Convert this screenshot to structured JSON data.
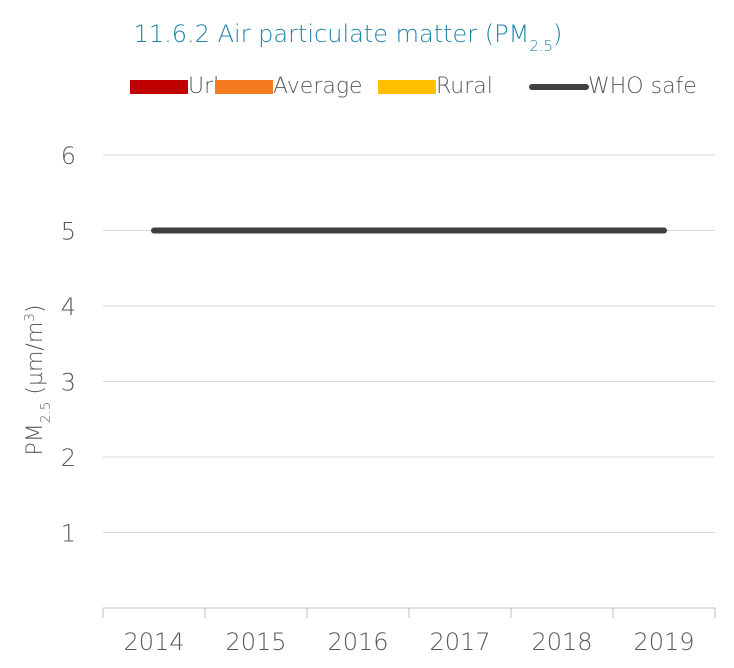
{
  "chart_data": {
    "type": "bar",
    "title": [
      "11.6.2 Air particulate matter (PM",
      "2.5",
      ")"
    ],
    "y_label": [
      "PM",
      "2.5",
      " (µm/m",
      "3",
      ")"
    ],
    "categories": [
      "2014",
      "2015",
      "2016",
      "2017",
      "2018",
      "2019"
    ],
    "series": [
      {
        "name": "Urban",
        "type": "bar",
        "color": "#c00000",
        "values": [
          null,
          null,
          null,
          null,
          null,
          null
        ]
      },
      {
        "name": "Average",
        "type": "bar",
        "color": "#f47b20",
        "values": [
          null,
          null,
          null,
          null,
          null,
          null
        ]
      },
      {
        "name": "Rural",
        "type": "bar",
        "color": "#ffc000",
        "values": [
          null,
          null,
          null,
          null,
          null,
          null
        ]
      },
      {
        "name": "WHO safe",
        "type": "line",
        "color": "#404040",
        "values": [
          5,
          5,
          5,
          5,
          5,
          5
        ]
      }
    ],
    "ylim": [
      0,
      6
    ],
    "yticks": [
      1,
      2,
      3,
      4,
      5,
      6
    ],
    "grid": true,
    "legend": "top"
  }
}
